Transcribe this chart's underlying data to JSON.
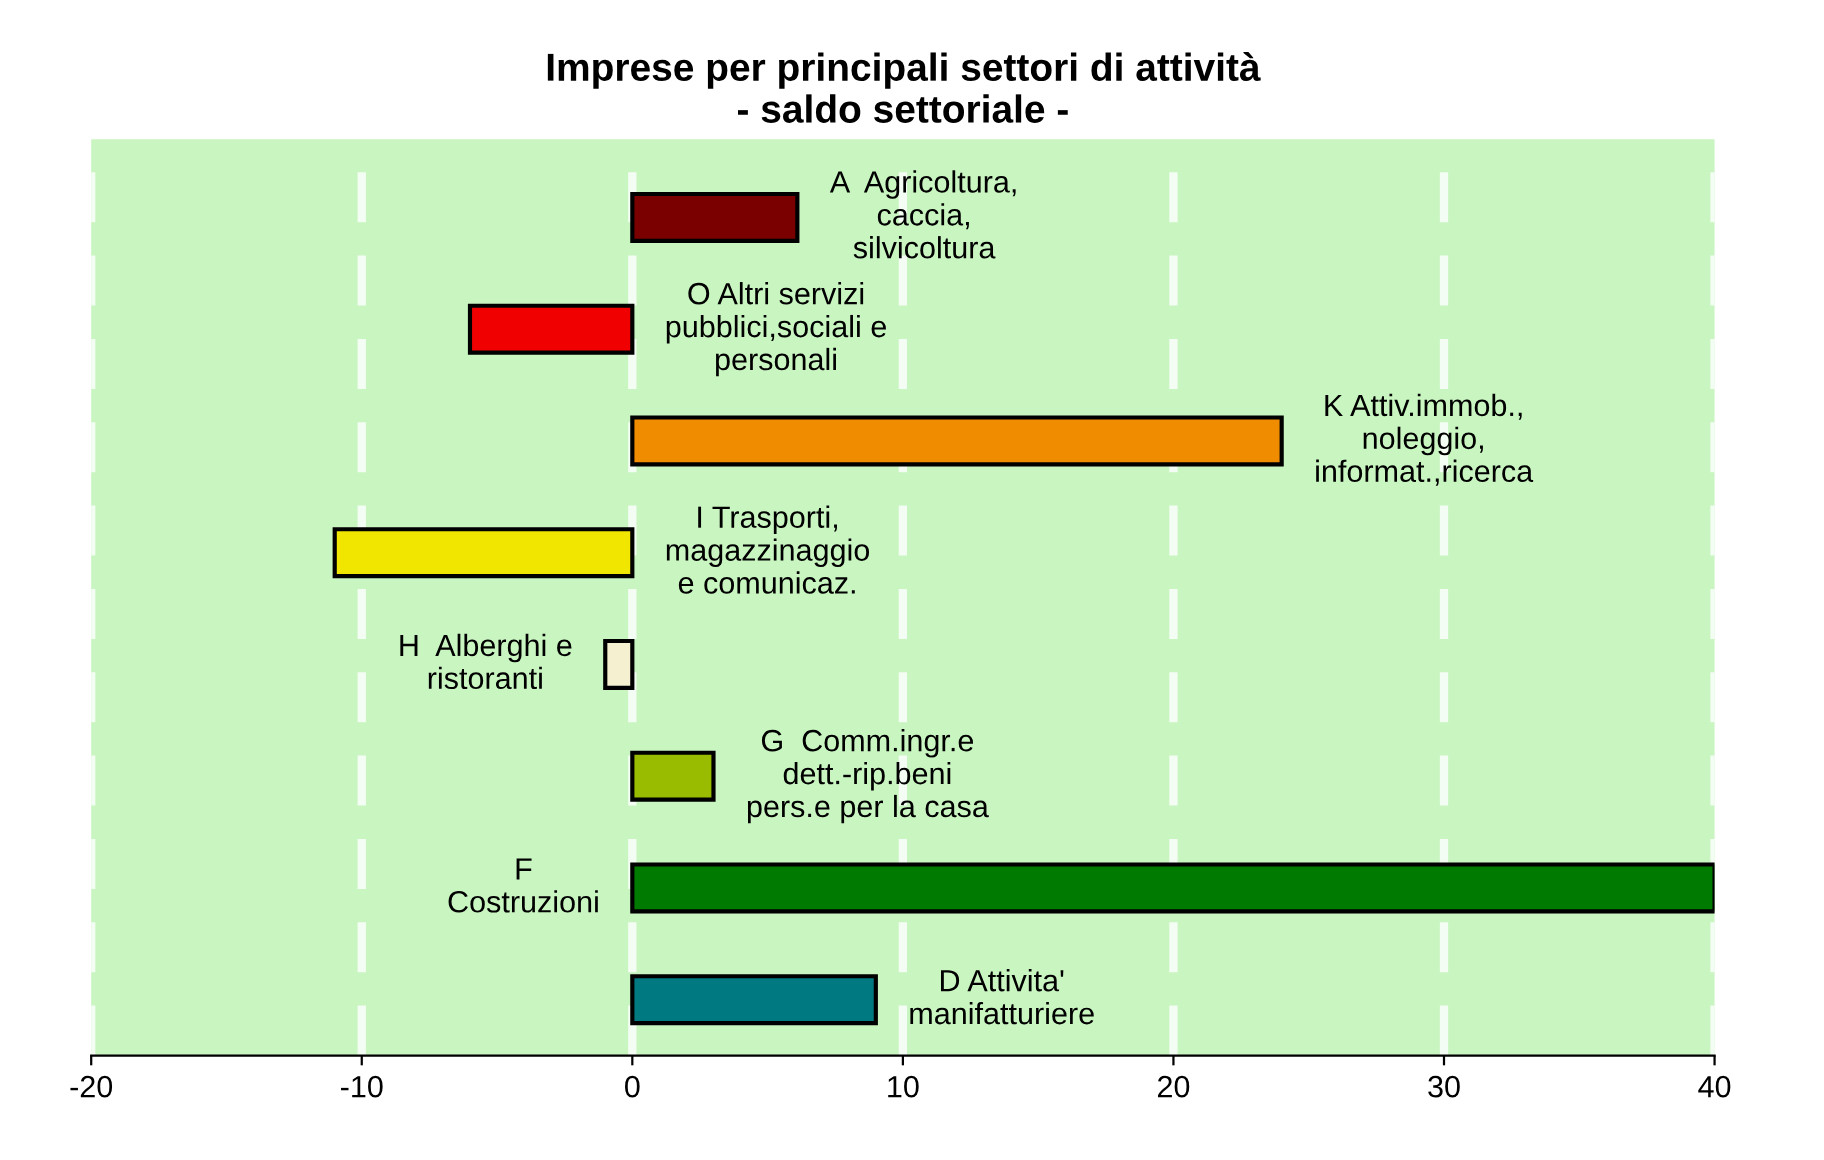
{
  "chart_data": {
    "type": "bar",
    "orientation": "horizontal",
    "title": "Imprese per principali settori di attività\n- saldo settoriale -",
    "categories": [
      "A  Agricoltura,\ncaccia,\nsilvicoltura",
      "O Altri servizi\npubblici,sociali e\npersonali",
      "K Attiv.immob.,\nnoleggio,\ninformat.,ricerca",
      "I Trasporti,\nmagazzinaggio\ne comunicaz.",
      "H  Alberghi e\nristoranti",
      "G  Comm.ingr.e\ndett.-rip.beni\npers.e per la casa",
      "F\nCostruzioni",
      "D Attivita'\nmanifatturiere"
    ],
    "values": [
      6.1,
      -6,
      24,
      -11,
      -1,
      3,
      40,
      9
    ],
    "colors": [
      "#7a0000",
      "#f00000",
      "#f08c00",
      "#f0e600",
      "#f5f0d0",
      "#99bb00",
      "#007a00",
      "#007a80"
    ],
    "xlim": [
      -20,
      40
    ],
    "xticks": [
      -20,
      -10,
      0,
      10,
      20,
      30,
      40
    ],
    "grid": "x",
    "tick_labels": "x"
  }
}
